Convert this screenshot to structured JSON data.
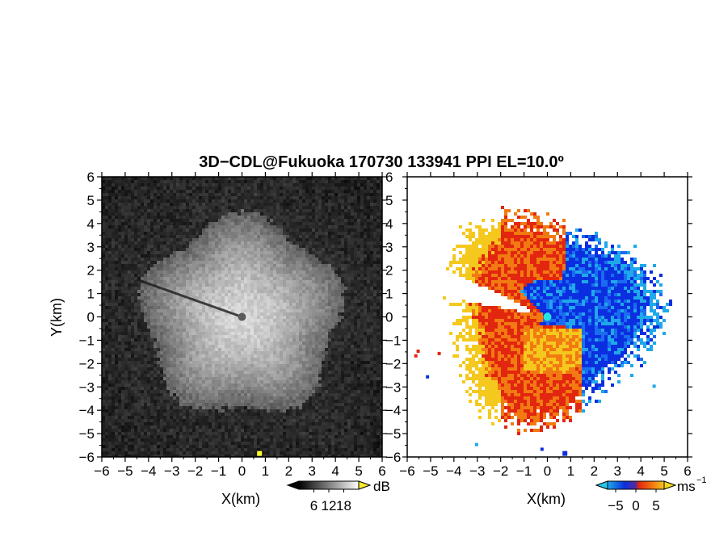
{
  "chart_data": {
    "title": "3D−CDL@Fukuoka 170730 133941 PPI EL=10.0º",
    "panels": [
      {
        "type": "heatmap",
        "field": "reflectivity",
        "xlabel": "X(km)",
        "ylabel": "Y(km)",
        "xlim": [
          -6,
          6
        ],
        "ylim": [
          -6,
          6
        ],
        "xticks": [
          "−6",
          "−5",
          "−4",
          "−3",
          "−2",
          "−1",
          "0",
          "1",
          "2",
          "3",
          "4",
          "5",
          "6"
        ],
        "yticks": [
          "−6",
          "−5",
          "−4",
          "−3",
          "−2",
          "−1",
          "0",
          "1",
          "2",
          "3",
          "4",
          "5",
          "6"
        ],
        "colormap": "grayscale",
        "colorbar": {
          "unit": "dB",
          "range": [
            0,
            24
          ],
          "tick_values": [
            6,
            12,
            18
          ],
          "tick_labels": [
            "6",
            "12",
            "18"
          ]
        },
        "features": {
          "echo_radius_km": 4.2,
          "dark_center_km": [
            0,
            0
          ],
          "shadow_beam_from_km": [
            -4.5,
            1.6
          ],
          "yellow_marker_km": [
            0.75,
            -5.85
          ]
        }
      },
      {
        "type": "heatmap",
        "field": "doppler_velocity",
        "xlabel": "X(km)",
        "ylabel": "",
        "xlim": [
          -6,
          6
        ],
        "ylim": [
          -6,
          6
        ],
        "xticks": [
          "−6",
          "−5",
          "−4",
          "−3",
          "−2",
          "−1",
          "0",
          "1",
          "2",
          "3",
          "4",
          "5",
          "6"
        ],
        "yticks": [
          "−6",
          "−5",
          "−4",
          "−3",
          "−2",
          "−1",
          "0",
          "1",
          "2",
          "3",
          "4",
          "5",
          "6"
        ],
        "colormap": "blue-red",
        "colorbar": {
          "unit": "ms",
          "unit_exponent": "−1",
          "range": [
            -7,
            7
          ],
          "tick_values": [
            -5,
            0,
            5
          ],
          "tick_labels": [
            "−5",
            "0",
            "5"
          ]
        },
        "features": {
          "echo_radius_km": 4.5,
          "center_marker_km": [
            0,
            0
          ],
          "blue_marker_km": [
            0.75,
            -5.85
          ]
        }
      }
    ]
  },
  "colors": {
    "vel_neg_dark": "#0b2fe0",
    "vel_neg_mid": "#1a6cf0",
    "vel_neg_light": "#1fa8ea",
    "vel_pos_red": "#e2260f",
    "vel_pos_orange": "#f27a12",
    "vel_pos_yellow": "#f5c81e",
    "center_cyan": "#22e6e0",
    "marker_yellow": "#ffff30"
  }
}
